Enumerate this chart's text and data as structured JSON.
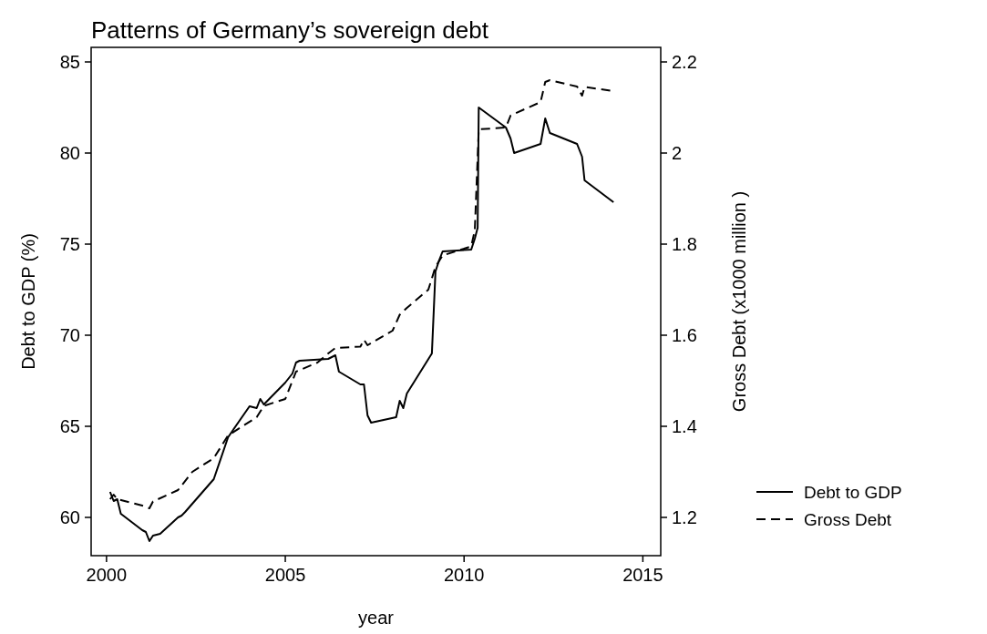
{
  "chart_data": {
    "type": "line",
    "title": "Patterns of Germany’s sovereign debt",
    "xlabel": "year",
    "ylabel": "Debt to GDP (%)",
    "y2label": "Gross Debt (x1000 million  )",
    "xlim": [
      1999.57,
      2015.5
    ],
    "xticks": [
      2000,
      2005,
      2010,
      2015
    ],
    "ylim": [
      57.9,
      85.8
    ],
    "yticks": [
      60,
      65,
      70,
      75,
      80,
      85
    ],
    "y2lim": [
      1.116,
      2.232
    ],
    "y2ticks": [
      1.2,
      1.4,
      1.6,
      1.8,
      2,
      2.2
    ],
    "legend": "right",
    "grid": false,
    "marker": "none",
    "series": [
      {
        "name": "Debt to GDP",
        "color": "#000000",
        "line_style": "solid",
        "x": [
          2000.1,
          2000.2,
          2000.3,
          2000.4,
          2001.0,
          2001.1,
          2001.2,
          2001.3,
          2001.5,
          2002.0,
          2002.1,
          2002.2,
          2003.0,
          2003.4,
          2004.0,
          2004.2,
          2004.3,
          2004.4,
          2005.0,
          2005.2,
          2005.3,
          2005.4,
          2006.2,
          2006.4,
          2006.5,
          2007.1,
          2007.2,
          2007.3,
          2007.4,
          2008.1,
          2008.2,
          2008.3,
          2008.4,
          2009.1,
          2009.2,
          2009.3,
          2009.4,
          2010.2,
          2010.3,
          2010.38,
          2010.41,
          2011.17,
          2011.3,
          2011.4,
          2012.14,
          2012.27,
          2012.4,
          2013.16,
          2013.3,
          2013.37,
          2014.18
        ],
        "values": [
          61.4,
          60.9,
          61.0,
          60.2,
          59.3,
          59.2,
          58.7,
          59.0,
          59.1,
          60.0,
          60.1,
          60.3,
          62.1,
          64.4,
          66.1,
          66.0,
          66.5,
          66.2,
          67.4,
          67.9,
          68.5,
          68.6,
          68.7,
          68.9,
          68.0,
          67.3,
          67.3,
          65.6,
          65.2,
          65.5,
          66.4,
          66.0,
          66.8,
          69.0,
          73.5,
          74.1,
          74.6,
          74.7,
          75.3,
          75.9,
          82.5,
          81.4,
          80.8,
          80.0,
          80.5,
          81.9,
          81.1,
          80.5,
          79.8,
          78.5,
          77.3
        ]
      },
      {
        "name": "Gross Debt",
        "color": "#000000",
        "line_style": "dashed",
        "axis": "y2",
        "x": [
          2000.1,
          2000.2,
          2000.3,
          2001.0,
          2001.2,
          2001.3,
          2002.0,
          2002.4,
          2003.0,
          2003.4,
          2004.2,
          2004.4,
          2005.0,
          2005.3,
          2005.9,
          2006.2,
          2006.4,
          2007.1,
          2007.2,
          2007.3,
          2008.0,
          2008.2,
          2008.4,
          2009.0,
          2009.2,
          2009.4,
          2010.2,
          2010.3,
          2010.41,
          2011.17,
          2011.3,
          2011.4,
          2012.14,
          2012.27,
          2012.4,
          2013.16,
          2013.3,
          2013.37,
          2014.18
        ],
        "values": [
          1.24,
          1.25,
          1.24,
          1.226,
          1.22,
          1.235,
          1.26,
          1.3,
          1.33,
          1.38,
          1.42,
          1.445,
          1.46,
          1.52,
          1.54,
          1.56,
          1.572,
          1.575,
          1.59,
          1.578,
          1.61,
          1.645,
          1.66,
          1.7,
          1.75,
          1.775,
          1.795,
          1.83,
          2.052,
          2.056,
          2.082,
          2.086,
          2.112,
          2.156,
          2.16,
          2.146,
          2.126,
          2.145,
          2.136
        ]
      }
    ]
  }
}
